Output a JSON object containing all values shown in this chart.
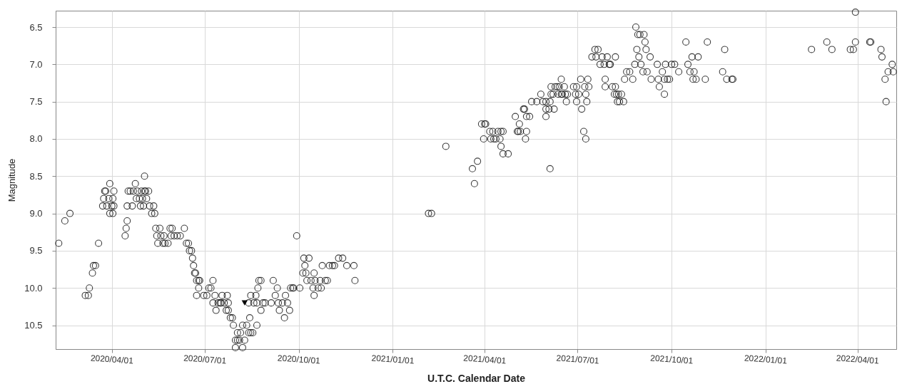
{
  "chart_data": {
    "type": "scatter",
    "xlabel": "U.T.C. Calendar Date",
    "ylabel": "Magnitude",
    "xlim": [
      "2020-02-06",
      "2022-05-09"
    ],
    "ylim": [
      10.82,
      6.28
    ],
    "xticks": [
      {
        "value": "2020-04-01",
        "label": "2020/04/01"
      },
      {
        "value": "2020-07-01",
        "label": "2020/07/01"
      },
      {
        "value": "2020-10-01",
        "label": "2020/10/01"
      },
      {
        "value": "2021-01-01",
        "label": "2021/01/01"
      },
      {
        "value": "2021-04-01",
        "label": "2021/04/01"
      },
      {
        "value": "2021-07-01",
        "label": "2021/07/01"
      },
      {
        "value": "2021-10-01",
        "label": "2021/10/01"
      },
      {
        "value": "2022-01-01",
        "label": "2022/01/01"
      },
      {
        "value": "2022-04-01",
        "label": "2022/04/01"
      }
    ],
    "yticks": [
      6.5,
      {
        "value": 7,
        "label": "7.0"
      },
      7.5,
      {
        "value": 8,
        "label": "8.0"
      },
      8.5,
      {
        "value": 9,
        "label": "9.0"
      },
      9.5,
      {
        "value": 10,
        "label": "10.0"
      },
      10.5
    ],
    "grid": true,
    "series": [
      {
        "color": "#000000",
        "marker": "circle",
        "x": [
          "2020-02-09",
          "2020-02-15",
          "2020-02-20",
          "2020-03-06",
          "2020-03-09",
          "2020-03-10",
          "2020-03-13",
          "2020-03-14",
          "2020-03-16",
          "2020-03-19",
          "2020-03-23",
          "2020-03-24",
          "2020-03-25",
          "2020-03-26",
          "2020-03-27",
          "2020-03-29",
          "2020-03-30",
          "2020-03-30",
          "2020-04-01",
          "2020-04-02",
          "2020-04-03",
          "2020-04-03",
          "2020-04-02",
          "2020-04-14",
          "2020-04-15",
          "2020-04-16",
          "2020-04-16",
          "2020-04-17",
          "2020-04-19",
          "2020-04-21",
          "2020-04-22",
          "2020-04-24",
          "2020-04-25",
          "2020-04-26",
          "2020-04-28",
          "2020-04-29",
          "2020-04-30",
          "2020-05-01",
          "2020-05-02",
          "2020-05-03",
          "2020-05-03",
          "2020-05-04",
          "2020-05-05",
          "2020-05-07",
          "2020-05-08",
          "2020-05-10",
          "2020-05-12",
          "2020-05-13",
          "2020-05-14",
          "2020-05-15",
          "2020-05-16",
          "2020-05-18",
          "2020-05-19",
          "2020-05-21",
          "2020-05-22",
          "2020-05-23",
          "2020-05-26",
          "2020-05-28",
          "2020-05-29",
          "2020-05-30",
          "2020-06-01",
          "2020-06-04",
          "2020-06-07",
          "2020-06-11",
          "2020-06-13",
          "2020-06-15",
          "2020-06-16",
          "2020-06-18",
          "2020-06-19",
          "2020-06-20",
          "2020-06-21",
          "2020-06-22",
          "2020-06-23",
          "2020-06-25",
          "2020-06-23",
          "2020-06-25",
          "2020-06-26",
          "2020-06-30",
          "2020-07-03",
          "2020-07-05",
          "2020-07-07",
          "2020-07-09",
          "2020-07-09",
          "2020-07-11",
          "2020-07-12",
          "2020-07-14",
          "2020-07-16",
          "2020-07-17",
          "2020-07-18",
          "2020-07-20",
          "2020-07-22",
          "2020-07-23",
          "2020-07-24",
          "2020-07-24",
          "2020-07-26",
          "2020-07-28",
          "2020-07-29",
          "2020-07-31",
          "2020-07-31",
          "2020-08-02",
          "2020-08-02",
          "2020-08-04",
          "2020-08-05",
          "2020-08-07",
          "2020-08-07",
          "2020-08-09",
          "2020-08-11",
          "2020-08-13",
          "2020-08-14",
          "2020-08-15",
          "2020-08-17",
          "2020-08-21",
          "2020-08-13",
          "2020-08-15",
          "2020-08-18",
          "2020-08-20",
          "2020-08-21",
          "2020-08-22",
          "2020-08-23",
          "2020-08-25",
          "2020-08-25",
          "2020-08-27",
          "2020-08-29",
          "2020-09-04",
          "2020-09-06",
          "2020-09-08",
          "2020-09-10",
          "2020-09-11",
          "2020-09-12",
          "2020-09-15",
          "2020-09-17",
          "2020-09-18",
          "2020-09-20",
          "2020-09-22",
          "2020-09-23",
          "2020-09-25",
          "2020-09-26",
          "2020-09-29",
          "2020-10-02",
          "2020-10-05",
          "2020-10-06",
          "2020-10-07",
          "2020-10-08",
          "2020-10-09",
          "2020-10-11",
          "2020-10-13",
          "2020-10-15",
          "2020-10-16",
          "2020-10-16",
          "2020-10-17",
          "2020-10-20",
          "2020-10-22",
          "2020-10-23",
          "2020-10-24",
          "2020-10-27",
          "2020-10-29",
          "2020-10-31",
          "2020-11-03",
          "2020-11-05",
          "2020-11-09",
          "2020-11-13",
          "2020-11-17",
          "2020-11-24",
          "2020-11-25",
          "2021-02-05",
          "2021-02-08",
          "2021-02-22",
          "2021-03-20",
          "2021-03-22",
          "2021-03-25",
          "2021-03-31",
          "2021-03-29",
          "2021-04-01",
          "2021-04-02",
          "2021-04-06",
          "2021-04-07",
          "2021-04-09",
          "2021-04-10",
          "2021-04-12",
          "2021-04-14",
          "2021-04-16",
          "2021-04-17",
          "2021-04-19",
          "2021-04-17",
          "2021-04-19",
          "2021-04-24",
          "2021-05-01",
          "2021-05-03",
          "2021-05-04",
          "2021-05-05",
          "2021-05-06",
          "2021-05-09",
          "2021-05-10",
          "2021-05-12",
          "2021-05-11",
          "2021-05-12",
          "2021-05-15",
          "2021-05-17",
          "2021-05-22",
          "2021-05-26",
          "2021-05-28",
          "2021-05-31",
          "2021-05-31",
          "2021-05-31",
          "2021-06-03",
          "2021-06-04",
          "2021-06-04",
          "2021-06-05",
          "2021-06-05",
          "2021-06-07",
          "2021-06-08",
          "2021-06-09",
          "2021-06-11",
          "2021-06-12",
          "2021-06-13",
          "2021-06-15",
          "2021-06-15",
          "2021-06-16",
          "2021-06-18",
          "2021-06-19",
          "2021-06-21",
          "2021-06-20",
          "2021-06-27",
          "2021-06-29",
          "2021-06-30",
          "2021-06-30",
          "2021-07-02",
          "2021-07-04",
          "2021-07-05",
          "2021-07-07",
          "2021-07-09",
          "2021-07-08",
          "2021-07-09",
          "2021-07-10",
          "2021-07-11",
          "2021-07-12",
          "2021-07-15",
          "2021-07-18",
          "2021-07-19",
          "2021-07-21",
          "2021-07-23",
          "2021-07-25",
          "2021-07-27",
          "2021-07-28",
          "2021-07-28",
          "2021-07-30",
          "2021-08-01",
          "2021-08-02",
          "2021-08-04",
          "2021-08-06",
          "2021-08-07",
          "2021-08-07",
          "2021-08-08",
          "2021-08-09",
          "2021-08-10",
          "2021-08-11",
          "2021-08-13",
          "2021-08-15",
          "2021-08-16",
          "2021-08-18",
          "2021-08-21",
          "2021-08-24",
          "2021-08-26",
          "2021-08-27",
          "2021-08-28",
          "2021-08-29",
          "2021-08-30",
          "2021-08-31",
          "2021-09-01",
          "2021-09-03",
          "2021-09-04",
          "2021-09-05",
          "2021-09-06",
          "2021-09-07",
          "2021-09-10",
          "2021-09-11",
          "2021-09-17",
          "2021-09-18",
          "2021-09-19",
          "2021-09-22",
          "2021-09-24",
          "2021-09-24",
          "2021-09-25",
          "2021-09-27",
          "2021-09-29",
          "2021-10-01",
          "2021-10-04",
          "2021-10-08",
          "2021-10-15",
          "2021-10-17",
          "2021-10-19",
          "2021-10-21",
          "2021-10-22",
          "2021-10-23",
          "2021-10-25",
          "2021-10-27",
          "2021-11-03",
          "2021-11-05",
          "2021-11-20",
          "2021-11-22",
          "2021-11-24",
          "2021-11-29",
          "2021-11-30",
          "2022-02-15",
          "2022-03-02",
          "2022-03-07",
          "2022-03-25",
          "2022-03-28",
          "2022-03-30",
          "2022-03-30",
          "2022-04-13",
          "2022-04-14",
          "2022-04-24",
          "2022-04-25",
          "2022-04-28",
          "2022-04-29",
          "2022-05-01",
          "2022-05-05",
          "2022-05-06"
        ],
        "values": [
          9.4,
          9.1,
          9.0,
          10.1,
          10.1,
          10.0,
          9.8,
          9.7,
          9.7,
          9.4,
          8.9,
          8.8,
          8.7,
          8.7,
          8.9,
          8.8,
          9.0,
          8.6,
          8.9,
          8.8,
          8.9,
          8.7,
          9.0,
          9.3,
          9.2,
          9.1,
          8.9,
          8.7,
          8.7,
          8.9,
          8.7,
          8.6,
          8.8,
          8.7,
          8.8,
          8.9,
          8.7,
          8.8,
          8.9,
          8.7,
          8.5,
          8.7,
          8.8,
          8.7,
          8.9,
          9.0,
          8.9,
          9.0,
          9.2,
          9.3,
          9.4,
          9.2,
          9.3,
          9.4,
          9.3,
          9.4,
          9.4,
          9.2,
          9.3,
          9.2,
          9.3,
          9.3,
          9.3,
          9.2,
          9.4,
          9.4,
          9.5,
          9.5,
          9.6,
          9.7,
          9.8,
          9.8,
          9.9,
          9.9,
          10.1,
          10.0,
          9.9,
          10.1,
          10.1,
          10.0,
          10.0,
          9.9,
          10.2,
          10.1,
          10.3,
          10.2,
          10.2,
          10.2,
          10.1,
          10.2,
          10.3,
          10.1,
          10.2,
          10.3,
          10.4,
          10.4,
          10.5,
          10.7,
          10.8,
          10.7,
          10.6,
          10.7,
          10.6,
          10.5,
          10.8,
          10.7,
          10.5,
          10.6,
          10.4,
          10.6,
          10.6,
          10.5,
          10.2,
          10.1,
          10.2,
          10.1,
          10.2,
          10.0,
          9.9,
          9.9,
          10.3,
          10.2,
          10.2,
          10.2,
          9.9,
          10.1,
          10.0,
          10.2,
          10.3,
          10.2,
          10.4,
          10.1,
          10.2,
          10.3,
          10.0,
          10.0,
          10.0,
          9.3,
          10.0,
          9.8,
          9.6,
          9.7,
          9.8,
          9.9,
          9.6,
          9.9,
          10.0,
          10.1,
          9.8,
          9.9,
          10.0,
          9.9,
          10.0,
          9.7,
          9.9,
          9.9,
          9.7,
          9.7,
          9.7,
          9.6,
          9.6,
          9.7,
          9.7,
          9.9,
          9.0,
          9.0,
          8.1,
          8.4,
          8.6,
          8.3,
          8.0,
          7.8,
          7.8,
          7.8,
          7.9,
          8.0,
          7.9,
          8.0,
          8.0,
          7.9,
          8.0,
          8.1,
          8.2,
          7.9,
          7.9,
          8.2,
          7.7,
          7.9,
          7.9,
          7.8,
          7.9,
          7.6,
          7.6,
          7.9,
          8.0,
          7.7,
          7.7,
          7.5,
          7.5,
          7.4,
          7.5,
          7.5,
          7.7,
          7.6,
          7.6,
          7.5,
          8.4,
          7.4,
          7.3,
          7.4,
          7.6,
          7.3,
          7.3,
          7.4,
          7.3,
          7.4,
          7.2,
          7.4,
          7.3,
          7.4,
          7.4,
          7.5,
          7.3,
          7.4,
          7.3,
          7.5,
          7.4,
          7.2,
          7.6,
          7.9,
          8.0,
          7.3,
          7.4,
          7.5,
          7.2,
          7.3,
          6.9,
          6.8,
          6.9,
          6.8,
          7.0,
          6.9,
          7.0,
          7.2,
          7.3,
          6.9,
          7.0,
          7.0,
          7.3,
          7.4,
          6.9,
          7.3,
          7.4,
          7.5,
          7.4,
          7.5,
          7.4,
          7.5,
          7.2,
          7.1,
          7.1,
          7.2,
          7.0,
          6.5,
          6.8,
          6.6,
          6.9,
          6.6,
          7.0,
          7.1,
          6.6,
          6.7,
          6.8,
          7.1,
          6.9,
          7.2,
          7.0,
          7.2,
          7.3,
          7.1,
          7.4,
          7.2,
          7.0,
          7.2,
          7.2,
          7.0,
          7.0,
          7.1,
          6.7,
          7.0,
          7.1,
          6.9,
          7.2,
          7.1,
          7.2,
          6.9,
          7.2,
          6.7,
          7.1,
          6.8,
          7.2,
          7.2,
          7.2,
          6.8,
          6.7,
          6.8,
          6.8,
          6.8,
          6.7,
          6.3,
          6.7,
          6.7,
          6.8,
          6.9,
          7.2,
          7.5,
          7.1,
          7.0,
          7.1
        ]
      },
      {
        "color": "#000000",
        "marker": "triangle",
        "x": [
          "2020-08-09"
        ],
        "values": [
          10.2
        ]
      }
    ]
  }
}
